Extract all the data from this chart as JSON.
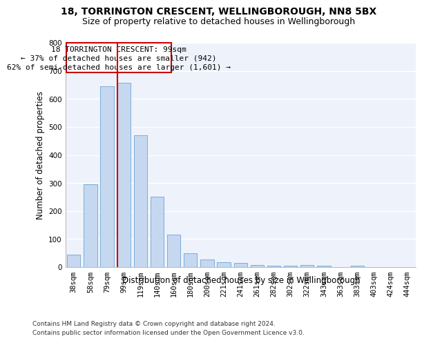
{
  "title1": "18, TORRINGTON CRESCENT, WELLINGBOROUGH, NN8 5BX",
  "title2": "Size of property relative to detached houses in Wellingborough",
  "xlabel": "Distribution of detached houses by size in Wellingborough",
  "ylabel": "Number of detached properties",
  "categories": [
    "38sqm",
    "58sqm",
    "79sqm",
    "99sqm",
    "119sqm",
    "140sqm",
    "160sqm",
    "180sqm",
    "200sqm",
    "221sqm",
    "241sqm",
    "261sqm",
    "282sqm",
    "302sqm",
    "322sqm",
    "343sqm",
    "363sqm",
    "383sqm",
    "403sqm",
    "424sqm",
    "444sqm"
  ],
  "values": [
    45,
    295,
    645,
    658,
    470,
    250,
    115,
    50,
    28,
    18,
    15,
    8,
    5,
    5,
    8,
    5,
    1,
    5,
    1,
    1,
    1
  ],
  "bar_color": "#c5d8f0",
  "bar_edge_color": "#7aadda",
  "highlight_index": 3,
  "highlight_color": "#cc0000",
  "ylim": [
    0,
    800
  ],
  "yticks": [
    0,
    100,
    200,
    300,
    400,
    500,
    600,
    700,
    800
  ],
  "annotation_line1": "18 TORRINGTON CRESCENT: 99sqm",
  "annotation_line2": "← 37% of detached houses are smaller (942)",
  "annotation_line3": "62% of semi-detached houses are larger (1,601) →",
  "footer1": "Contains HM Land Registry data © Crown copyright and database right 2024.",
  "footer2": "Contains public sector information licensed under the Open Government Licence v3.0.",
  "background_color": "#eef2fa",
  "grid_color": "#ffffff",
  "title1_fontsize": 10,
  "title2_fontsize": 9,
  "axis_label_fontsize": 8.5,
  "tick_fontsize": 7.5,
  "annotation_fontsize": 8,
  "footer_fontsize": 6.5
}
